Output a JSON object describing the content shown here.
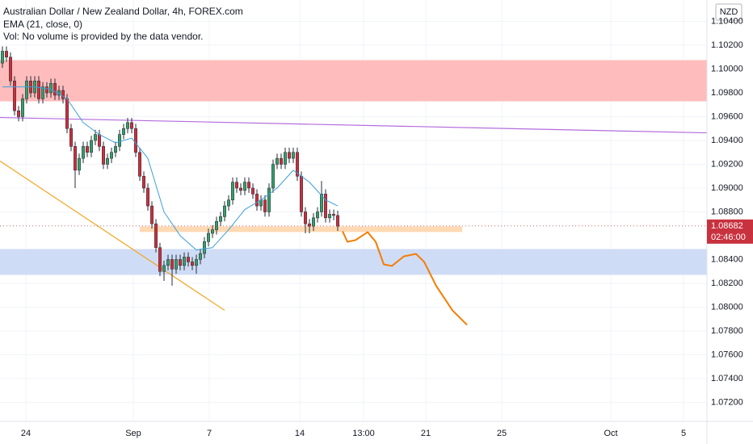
{
  "chart_data": {
    "type": "candlestick",
    "title": "Australian Dollar / New Zealand Dollar, 4h, FOREX.com",
    "indicator_label": "EMA (21, close, 0)",
    "volume_note": "Vol: No volume is provided by the data vendor.",
    "currency": "NZD",
    "up_color": "#3a9d6c",
    "down_color": "#c8323e",
    "wick_color": "#2a2e39",
    "grid": true,
    "grid_color": "#f0f3fa",
    "xlim": [
      -0.6,
      174.4
    ],
    "ylim": [
      1.0704,
      1.1058
    ],
    "yticks": [
      {
        "value": 1.104,
        "label": "1.10400"
      },
      {
        "value": 1.102,
        "label": "1.10200"
      },
      {
        "value": 1.1,
        "label": "1.10000"
      },
      {
        "value": 1.098,
        "label": "1.09800"
      },
      {
        "value": 1.096,
        "label": "1.09600"
      },
      {
        "value": 1.094,
        "label": "1.09400"
      },
      {
        "value": 1.092,
        "label": "1.09200"
      },
      {
        "value": 1.09,
        "label": "1.09000"
      },
      {
        "value": 1.088,
        "label": "1.08800"
      },
      {
        "value": 1.084,
        "label": "1.08400"
      },
      {
        "value": 1.082,
        "label": "1.08200"
      },
      {
        "value": 1.08,
        "label": "1.08000"
      },
      {
        "value": 1.078,
        "label": "1.07800"
      },
      {
        "value": 1.076,
        "label": "1.07600"
      },
      {
        "value": 1.074,
        "label": "1.07400"
      },
      {
        "value": 1.072,
        "label": "1.07200"
      }
    ],
    "xticks": [
      {
        "value": 5.8,
        "label": "24"
      },
      {
        "value": 32.4,
        "label": "Sep"
      },
      {
        "value": 51.2,
        "label": "7"
      },
      {
        "value": 73.6,
        "label": "14"
      },
      {
        "value": 89.4,
        "label": "13:00"
      },
      {
        "value": 104.8,
        "label": "21"
      },
      {
        "value": 123.6,
        "label": "25"
      },
      {
        "value": 150.6,
        "label": "Oct"
      },
      {
        "value": 168.6,
        "label": "5"
      }
    ],
    "x": [
      0,
      1,
      2,
      3,
      4,
      5,
      6,
      7,
      8,
      9,
      10,
      11,
      12,
      13,
      14,
      15,
      16,
      17,
      18,
      19,
      20,
      21,
      22,
      23,
      24,
      25,
      26,
      27,
      28,
      29,
      30,
      31,
      32,
      33,
      34,
      35,
      36,
      37,
      38,
      39,
      40,
      41,
      42,
      43,
      44,
      45,
      46,
      47,
      48,
      49,
      50,
      51,
      52,
      53,
      54,
      55,
      56,
      57,
      58,
      59,
      60,
      61,
      62,
      63,
      64,
      65,
      66,
      67,
      68,
      69,
      70,
      71,
      72,
      73,
      74,
      75,
      76,
      77,
      78,
      79,
      80,
      81,
      82,
      83
    ],
    "open": [
      1.1005,
      1.1015,
      1.101,
      1.099,
      1.0965,
      1.096,
      1.0975,
      1.099,
      1.098,
      1.099,
      1.0975,
      1.0985,
      1.098,
      1.0988,
      1.0978,
      1.0982,
      1.0975,
      1.095,
      1.0935,
      1.0915,
      1.0925,
      1.0935,
      1.093,
      1.094,
      1.0945,
      1.0935,
      1.092,
      1.0925,
      1.093,
      1.0935,
      1.0945,
      1.095,
      1.0955,
      1.095,
      1.093,
      1.091,
      1.09,
      1.0885,
      1.087,
      1.085,
      1.083,
      1.0835,
      1.084,
      1.0832,
      1.084,
      1.0835,
      1.0842,
      1.0838,
      1.0835,
      1.084,
      1.0845,
      1.0855,
      1.0862,
      1.0865,
      1.0872,
      1.0876,
      1.0885,
      1.089,
      1.0905,
      1.09,
      1.0898,
      1.0905,
      1.09,
      1.0895,
      1.0885,
      1.089,
      1.088,
      1.09,
      1.092,
      1.0925,
      1.092,
      1.093,
      1.0925,
      1.093,
      1.091,
      1.088,
      1.087,
      1.0868,
      1.0875,
      1.088,
      1.0895,
      1.0875,
      1.0878,
      1.0877
    ],
    "high": [
      1.1019,
      1.1019,
      1.1014,
      1.0994,
      1.0969,
      1.0979,
      1.0994,
      1.0994,
      1.0994,
      1.0994,
      1.0989,
      1.0989,
      1.0992,
      1.0992,
      1.0986,
      1.0986,
      1.0979,
      1.0954,
      1.0939,
      1.0929,
      1.0939,
      1.0939,
      1.0944,
      1.0949,
      1.0949,
      1.0939,
      1.0929,
      1.0934,
      1.0939,
      1.0949,
      1.0954,
      1.0959,
      1.0959,
      1.0954,
      1.0934,
      1.0914,
      1.0904,
      1.0889,
      1.0874,
      1.0854,
      1.0839,
      1.0844,
      1.0844,
      1.0844,
      1.0844,
      1.0846,
      1.0846,
      1.0842,
      1.0844,
      1.0849,
      1.0859,
      1.0866,
      1.0869,
      1.0876,
      1.088,
      1.0889,
      1.0894,
      1.0909,
      1.0909,
      1.0904,
      1.0909,
      1.0909,
      1.0904,
      1.0899,
      1.0894,
      1.0894,
      1.0904,
      1.0924,
      1.0929,
      1.0929,
      1.0934,
      1.0934,
      1.0934,
      1.0934,
      1.0914,
      1.0884,
      1.0874,
      1.0879,
      1.0884,
      1.0906,
      1.0899,
      1.0882,
      1.0882,
      1.0881
    ],
    "low": [
      1.1001,
      1.1006,
      1.0986,
      1.0961,
      1.0956,
      1.0956,
      1.0971,
      1.0976,
      1.0976,
      1.0971,
      1.0971,
      1.0976,
      1.0976,
      1.0974,
      1.0974,
      1.0971,
      1.0946,
      1.0931,
      1.09,
      1.0911,
      1.0921,
      1.0926,
      1.0926,
      1.0936,
      1.0931,
      1.0916,
      1.0916,
      1.0921,
      1.0926,
      1.0931,
      1.0941,
      1.0946,
      1.0946,
      1.0926,
      1.0906,
      1.0896,
      1.0881,
      1.0866,
      1.0846,
      1.0826,
      1.0822,
      1.0831,
      1.0818,
      1.0828,
      1.0831,
      1.0831,
      1.0834,
      1.0831,
      1.0828,
      1.0836,
      1.0841,
      1.0851,
      1.0858,
      1.0861,
      1.0868,
      1.0872,
      1.0881,
      1.0886,
      1.0896,
      1.0894,
      1.0894,
      1.0896,
      1.0891,
      1.0881,
      1.0881,
      1.0876,
      1.0876,
      1.0896,
      1.0916,
      1.0916,
      1.0916,
      1.0921,
      1.0921,
      1.0906,
      1.0876,
      1.0862,
      1.0862,
      1.0864,
      1.0871,
      1.0876,
      1.0871,
      1.0871,
      1.0873,
      1.0864
    ],
    "close": [
      1.1015,
      1.101,
      1.099,
      1.0965,
      1.096,
      1.0975,
      1.099,
      1.098,
      1.099,
      1.0975,
      1.0985,
      1.098,
      1.0988,
      1.0978,
      1.0982,
      1.0975,
      1.095,
      1.0935,
      1.0915,
      1.0925,
      1.0935,
      1.093,
      1.094,
      1.0945,
      1.0935,
      1.092,
      1.0925,
      1.093,
      1.0935,
      1.0945,
      1.095,
      1.0955,
      1.095,
      1.093,
      1.091,
      1.09,
      1.0885,
      1.087,
      1.085,
      1.083,
      1.0835,
      1.084,
      1.0832,
      1.084,
      1.0835,
      1.0842,
      1.0838,
      1.0835,
      1.084,
      1.0845,
      1.0855,
      1.0862,
      1.0865,
      1.0872,
      1.0876,
      1.0885,
      1.089,
      1.0905,
      1.09,
      1.0898,
      1.0905,
      1.09,
      1.0895,
      1.0885,
      1.089,
      1.088,
      1.09,
      1.092,
      1.0925,
      1.092,
      1.093,
      1.0925,
      1.093,
      1.091,
      1.088,
      1.087,
      1.0868,
      1.0875,
      1.088,
      1.0895,
      1.0875,
      1.0878,
      1.0877,
      1.0868
    ],
    "ema": {
      "color": "#3aa0d8",
      "x": [
        0,
        4,
        8,
        12,
        16,
        20,
        24,
        28,
        32,
        36,
        40,
        44,
        48,
        52,
        56,
        60,
        64,
        68,
        72,
        76,
        80,
        83
      ],
      "values": [
        1.0985,
        1.0985,
        1.0985,
        1.0983,
        1.0975,
        1.0955,
        1.0945,
        1.0938,
        1.0942,
        1.0925,
        1.088,
        1.086,
        1.0848,
        1.085,
        1.0865,
        1.0882,
        1.089,
        1.09,
        1.0915,
        1.0905,
        1.089,
        1.0885
      ]
    },
    "zones": [
      {
        "y": [
          1.10075,
          1.09729
        ],
        "color": "#ffbcbc"
      },
      {
        "y": [
          1.08488,
          1.08271
        ],
        "color": "#cfdcf5"
      },
      {
        "y": [
          1.08678,
          1.08631
        ],
        "x": [
          34,
          113.8
        ],
        "color": "#ffd9b3"
      }
    ],
    "lines": [
      {
        "x": [
          -0.6,
          174.4
        ],
        "y": [
          1.09593,
          1.09464
        ],
        "color": "#b36bdc"
      },
      {
        "x": [
          -0.6,
          55
        ],
        "y": [
          1.09227,
          1.07973
        ],
        "color": "#f5a623"
      }
    ],
    "projection": {
      "color": "#f57c00",
      "x": [
        84.2,
        85.4,
        87.4,
        90.4,
        92.4,
        94.4,
        96.4,
        99.4,
        102.4,
        104.4,
        107.4,
        111.4,
        115
      ],
      "y": [
        1.08637,
        1.08549,
        1.08563,
        1.0863,
        1.08549,
        1.08359,
        1.08346,
        1.08427,
        1.08447,
        1.0838,
        1.08177,
        1.07973,
        1.07851
      ]
    },
    "last_price": {
      "value": 1.08682,
      "label": "1.08682"
    },
    "countdown": "02:46:00"
  }
}
